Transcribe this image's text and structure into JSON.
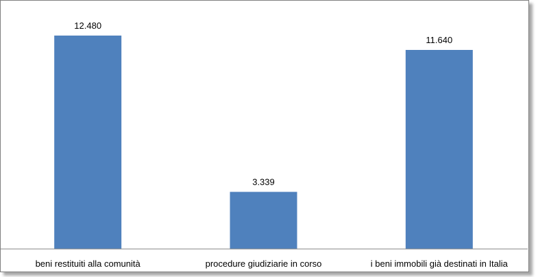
{
  "chart_data": {
    "type": "bar",
    "categories": [
      "beni restituiti alla comunità",
      "procedure giudiziarie in corso",
      "i beni immobili già destinati in Italia"
    ],
    "values": [
      12480,
      3339,
      11640
    ],
    "data_labels": [
      "12.480",
      "3.339",
      "11.640"
    ],
    "title": "",
    "xlabel": "",
    "ylabel": "",
    "ylim": [
      0,
      14000
    ],
    "grid": false,
    "legend": "none",
    "bar_color": "#4f81bd"
  }
}
